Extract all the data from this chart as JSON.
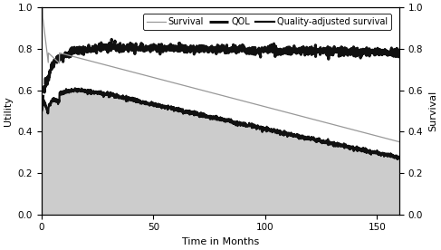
{
  "title": "",
  "xlabel": "Time in Months",
  "ylabel_left": "Utility",
  "ylabel_right": "Survival",
  "xlim": [
    0,
    160
  ],
  "ylim": [
    0.0,
    1.0
  ],
  "legend_labels": [
    "Survival",
    "QOL",
    "Quality-adjusted survival"
  ],
  "fill_color": "#cccccc",
  "survival_color": "#999999",
  "qol_color": "#111111",
  "qa_survival_color": "#111111",
  "xticks": [
    0,
    50,
    100,
    150
  ],
  "yticks": [
    0.0,
    0.2,
    0.4,
    0.6,
    0.8,
    1.0
  ]
}
